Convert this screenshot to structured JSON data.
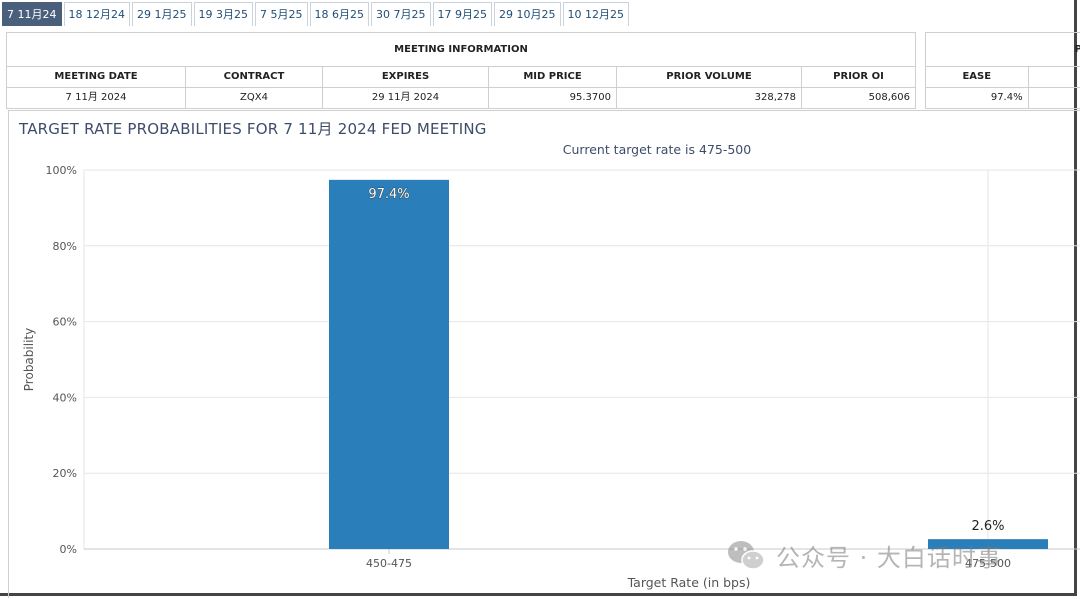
{
  "tabs": [
    {
      "label": "7 11月24",
      "active": true
    },
    {
      "label": "18 12月24"
    },
    {
      "label": "29 1月25"
    },
    {
      "label": "19 3月25"
    },
    {
      "label": "7 5月25"
    },
    {
      "label": "18 6月25"
    },
    {
      "label": "30 7月25"
    },
    {
      "label": "17 9月25"
    },
    {
      "label": "29 10月25"
    },
    {
      "label": "10 12月25"
    }
  ],
  "meeting_info": {
    "title": "MEETING INFORMATION",
    "headers": [
      "MEETING DATE",
      "CONTRACT",
      "EXPIRES",
      "MID PRICE",
      "PRIOR VOLUME",
      "PRIOR OI"
    ],
    "values": [
      "7 11月 2024",
      "ZQX4",
      "29 11月 2024",
      "95.3700",
      "328,278",
      "508,606"
    ]
  },
  "probabilities_panel": {
    "header_cut": "P",
    "col_header": "EASE",
    "value": "97.4%"
  },
  "chart_title": "TARGET RATE PROBABILITIES FOR 7 11月 2024 FED MEETING",
  "chart_subtitle": "Current target rate is 475-500",
  "watermark": {
    "text": "公众号 · 大白话时事",
    "icon": "wechat-icon"
  },
  "colors": {
    "bar": "#2a7fba",
    "active_tab": "#4a5f7c",
    "title": "#3e4c6b"
  },
  "chart_data": {
    "type": "bar",
    "categories": [
      "450-475",
      "475-500"
    ],
    "values": [
      97.4,
      2.6
    ],
    "data_labels": [
      "97.4%",
      "2.6%"
    ],
    "xlabel": "Target Rate (in bps)",
    "ylabel": "Probability",
    "ylim": [
      0,
      100
    ],
    "yticks": [
      "0%",
      "20%",
      "40%",
      "60%",
      "80%",
      "100%"
    ],
    "ytick_values": [
      0,
      20,
      40,
      60,
      80,
      100
    ],
    "grid": true
  }
}
